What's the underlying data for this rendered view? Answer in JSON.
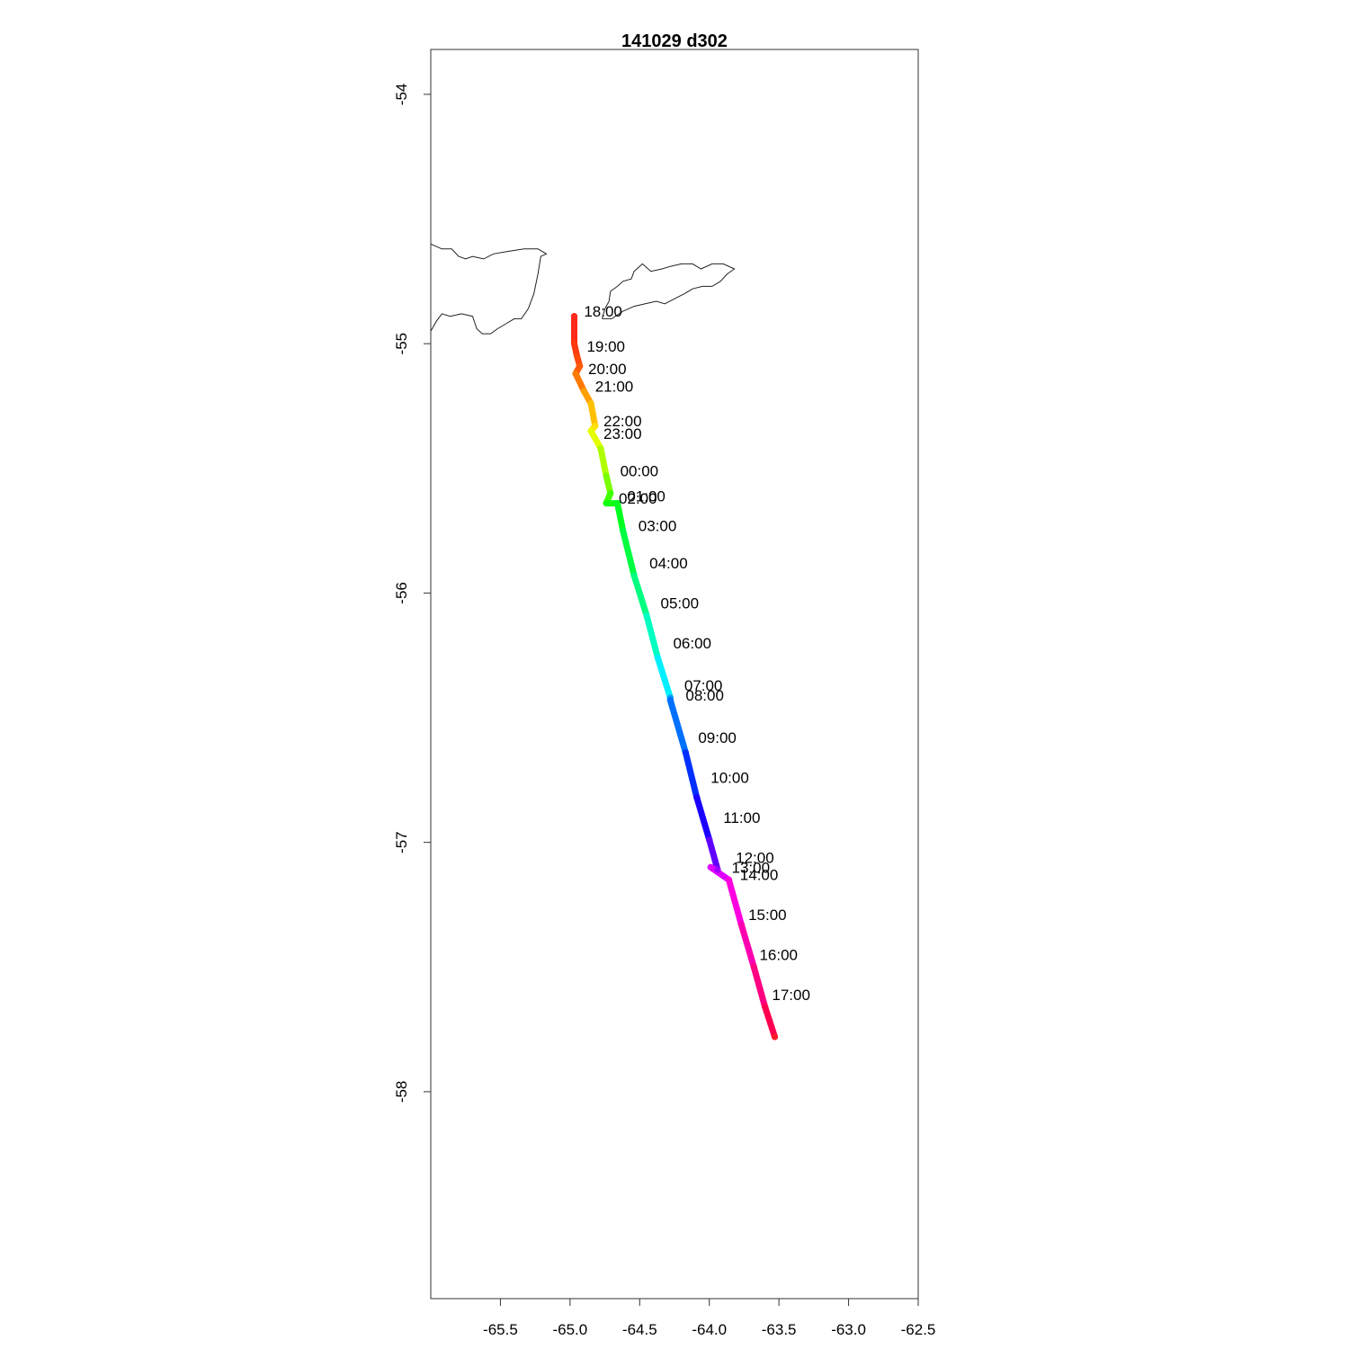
{
  "title": "141029   d302",
  "chart_data": {
    "type": "map",
    "title": "141029   d302",
    "xlim": [
      -66.0,
      -62.5
    ],
    "ylim": [
      -58.83,
      -53.82
    ],
    "x_ticks": [
      {
        "value": -65.5,
        "label": "-65.5"
      },
      {
        "value": -65.0,
        "label": "-65.0"
      },
      {
        "value": -64.5,
        "label": "-64.5"
      },
      {
        "value": -64.0,
        "label": "-64.0"
      },
      {
        "value": -63.5,
        "label": "-63.5"
      },
      {
        "value": -63.0,
        "label": "-63.0"
      },
      {
        "value": -62.5,
        "label": "-62.5"
      }
    ],
    "y_ticks": [
      {
        "value": -54,
        "label": "-54"
      },
      {
        "value": -55,
        "label": "-55"
      },
      {
        "value": -56,
        "label": "-56"
      },
      {
        "value": -57,
        "label": "-57"
      },
      {
        "value": -58,
        "label": "-58"
      }
    ],
    "track": [
      {
        "lon": -64.97,
        "lat": -54.89,
        "color": "#ff2a1a"
      },
      {
        "lon": -64.97,
        "lat": -55.0,
        "color": "#ff3a10"
      },
      {
        "lon": -64.95,
        "lat": -55.05,
        "color": "#ff4a0a"
      },
      {
        "lon": -64.93,
        "lat": -55.09,
        "color": "#ff5a06"
      },
      {
        "lon": -64.96,
        "lat": -55.12,
        "color": "#ff7a00"
      },
      {
        "lon": -64.9,
        "lat": -55.19,
        "color": "#ffa000"
      },
      {
        "lon": -64.85,
        "lat": -55.24,
        "color": "#ffc000"
      },
      {
        "lon": -64.82,
        "lat": -55.33,
        "color": "#ffe000"
      },
      {
        "lon": -64.85,
        "lat": -55.35,
        "color": "#e6ff00"
      },
      {
        "lon": -64.78,
        "lat": -55.42,
        "color": "#b0ff00"
      },
      {
        "lon": -64.74,
        "lat": -55.53,
        "color": "#7aff00"
      },
      {
        "lon": -64.71,
        "lat": -55.6,
        "color": "#40ff00"
      },
      {
        "lon": -64.74,
        "lat": -55.64,
        "color": "#10ff10"
      },
      {
        "lon": -64.66,
        "lat": -55.64,
        "color": "#00ff20"
      },
      {
        "lon": -64.62,
        "lat": -55.75,
        "color": "#00ff40"
      },
      {
        "lon": -64.54,
        "lat": -55.93,
        "color": "#00ff80"
      },
      {
        "lon": -64.45,
        "lat": -56.09,
        "color": "#00ffc0"
      },
      {
        "lon": -64.37,
        "lat": -56.26,
        "color": "#00f0ff"
      },
      {
        "lon": -64.28,
        "lat": -56.42,
        "color": "#00a0ff"
      },
      {
        "lon": -64.28,
        "lat": -56.43,
        "color": "#0070ff"
      },
      {
        "lon": -64.17,
        "lat": -56.64,
        "color": "#0030ff"
      },
      {
        "lon": -64.09,
        "lat": -56.82,
        "color": "#1a00ff"
      },
      {
        "lon": -64.0,
        "lat": -56.99,
        "color": "#6000ff"
      },
      {
        "lon": -63.94,
        "lat": -57.11,
        "color": "#a000ff"
      },
      {
        "lon": -63.99,
        "lat": -57.1,
        "color": "#e000ff"
      },
      {
        "lon": -63.86,
        "lat": -57.15,
        "color": "#ff00e0"
      },
      {
        "lon": -63.77,
        "lat": -57.33,
        "color": "#ff00b0"
      },
      {
        "lon": -63.68,
        "lat": -57.5,
        "color": "#ff0080"
      },
      {
        "lon": -63.6,
        "lat": -57.66,
        "color": "#ff0050"
      },
      {
        "lon": -63.53,
        "lat": -57.78,
        "color": "#ff1a2a"
      }
    ],
    "hour_labels": [
      {
        "text": "18:00",
        "lon": -64.9,
        "lat": -54.87
      },
      {
        "text": "19:00",
        "lon": -64.88,
        "lat": -55.01
      },
      {
        "text": "20:00",
        "lon": -64.87,
        "lat": -55.1
      },
      {
        "text": "21:00",
        "lon": -64.82,
        "lat": -55.17
      },
      {
        "text": "22:00",
        "lon": -64.76,
        "lat": -55.31
      },
      {
        "text": "23:00",
        "lon": -64.76,
        "lat": -55.36
      },
      {
        "text": "00:00",
        "lon": -64.64,
        "lat": -55.51
      },
      {
        "text": "01:00",
        "lon": -64.59,
        "lat": -55.61
      },
      {
        "text": "02:00",
        "lon": -64.65,
        "lat": -55.62
      },
      {
        "text": "03:00",
        "lon": -64.51,
        "lat": -55.73
      },
      {
        "text": "04:00",
        "lon": -64.43,
        "lat": -55.88
      },
      {
        "text": "05:00",
        "lon": -64.35,
        "lat": -56.04
      },
      {
        "text": "06:00",
        "lon": -64.26,
        "lat": -56.2
      },
      {
        "text": "07:00",
        "lon": -64.18,
        "lat": -56.37
      },
      {
        "text": "08:00",
        "lon": -64.17,
        "lat": -56.41
      },
      {
        "text": "09:00",
        "lon": -64.08,
        "lat": -56.58
      },
      {
        "text": "10:00",
        "lon": -63.99,
        "lat": -56.74
      },
      {
        "text": "11:00",
        "lon": -63.9,
        "lat": -56.9
      },
      {
        "text": "12:00",
        "lon": -63.81,
        "lat": -57.06
      },
      {
        "text": "13:00",
        "lon": -63.84,
        "lat": -57.1
      },
      {
        "text": "14:00",
        "lon": -63.78,
        "lat": -57.13
      },
      {
        "text": "15:00",
        "lon": -63.72,
        "lat": -57.29
      },
      {
        "text": "16:00",
        "lon": -63.64,
        "lat": -57.45
      },
      {
        "text": "17:00",
        "lon": -63.55,
        "lat": -57.61
      }
    ],
    "coastlines": [
      {
        "name": "coast-west",
        "points": [
          [
            -66.0,
            -54.6
          ],
          [
            -65.92,
            -54.62
          ],
          [
            -65.85,
            -54.62
          ],
          [
            -65.8,
            -54.65
          ],
          [
            -65.75,
            -54.66
          ],
          [
            -65.7,
            -54.65
          ],
          [
            -65.62,
            -54.66
          ],
          [
            -65.55,
            -54.64
          ],
          [
            -65.45,
            -54.63
          ],
          [
            -65.33,
            -54.62
          ],
          [
            -65.23,
            -54.62
          ],
          [
            -65.17,
            -54.64
          ],
          [
            -65.21,
            -54.65
          ],
          [
            -65.23,
            -54.72
          ],
          [
            -65.26,
            -54.8
          ],
          [
            -65.3,
            -54.86
          ],
          [
            -65.35,
            -54.9
          ],
          [
            -65.4,
            -54.9
          ],
          [
            -65.46,
            -54.92
          ],
          [
            -65.52,
            -54.94
          ],
          [
            -65.57,
            -54.96
          ],
          [
            -65.63,
            -54.96
          ],
          [
            -65.67,
            -54.94
          ],
          [
            -65.7,
            -54.89
          ],
          [
            -65.78,
            -54.88
          ],
          [
            -65.86,
            -54.89
          ],
          [
            -65.92,
            -54.88
          ],
          [
            -65.96,
            -54.91
          ],
          [
            -66.0,
            -54.95
          ]
        ]
      },
      {
        "name": "coast-east",
        "points": [
          [
            -64.77,
            -54.9
          ],
          [
            -64.75,
            -54.86
          ],
          [
            -64.72,
            -54.83
          ],
          [
            -64.71,
            -54.79
          ],
          [
            -64.66,
            -54.77
          ],
          [
            -64.62,
            -54.75
          ],
          [
            -64.56,
            -54.74
          ],
          [
            -64.54,
            -54.71
          ],
          [
            -64.48,
            -54.68
          ],
          [
            -64.42,
            -54.71
          ],
          [
            -64.34,
            -54.7
          ],
          [
            -64.28,
            -54.69
          ],
          [
            -64.2,
            -54.68
          ],
          [
            -64.12,
            -54.68
          ],
          [
            -64.06,
            -54.7
          ],
          [
            -63.98,
            -54.68
          ],
          [
            -63.9,
            -54.68
          ],
          [
            -63.82,
            -54.7
          ],
          [
            -63.87,
            -54.72
          ],
          [
            -63.92,
            -54.75
          ],
          [
            -63.98,
            -54.77
          ],
          [
            -64.05,
            -54.77
          ],
          [
            -64.12,
            -54.78
          ],
          [
            -64.18,
            -54.8
          ],
          [
            -64.25,
            -54.82
          ],
          [
            -64.32,
            -54.84
          ],
          [
            -64.38,
            -54.83
          ],
          [
            -64.46,
            -54.84
          ],
          [
            -64.54,
            -54.85
          ],
          [
            -64.62,
            -54.87
          ],
          [
            -64.7,
            -54.9
          ],
          [
            -64.77,
            -54.9
          ]
        ]
      }
    ]
  }
}
